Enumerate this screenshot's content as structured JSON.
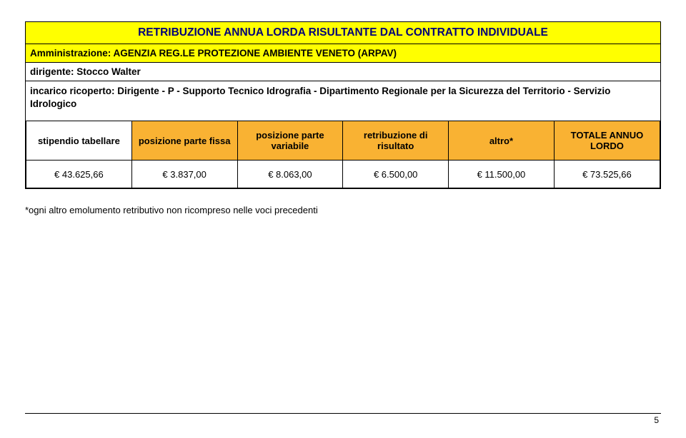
{
  "colors": {
    "yellow": "#ffff00",
    "orange": "#f9b233",
    "white": "#ffffff",
    "text": "#000000",
    "title_text": "#00007a"
  },
  "title": "RETRIBUZIONE ANNUA LORDA RISULTANTE DAL CONTRATTO INDIVIDUALE",
  "administration": "Amministrazione: AGENZIA REG.LE PROTEZIONE AMBIENTE VENETO (ARPAV)",
  "dirigente": "dirigente: Stocco Walter",
  "incarico": "incarico ricoperto: Dirigente - P - Supporto Tecnico Idrografia - Dipartimento Regionale per la Sicurezza del Territorio - Servizio Idrologico",
  "headers": {
    "c0": "stipendio tabellare",
    "c1": "posizione parte fissa",
    "c2": "posizione parte variabile",
    "c3": "retribuzione di risultato",
    "c4": "altro*",
    "c5": "TOTALE ANNUO LORDO"
  },
  "row": {
    "c0": "€ 43.625,66",
    "c1": "€ 3.837,00",
    "c2": "€ 8.063,00",
    "c3": "€ 6.500,00",
    "c4": "€ 11.500,00",
    "c5": "€ 73.525,66"
  },
  "footnote": "*ogni altro emolumento retributivo non ricompreso nelle voci precedenti",
  "page_number": "5",
  "col_widths": [
    "16.66%",
    "16.66%",
    "16.66%",
    "16.66%",
    "16.66%",
    "16.7%"
  ],
  "header_bg": [
    "#ffffff",
    "#f9b233",
    "#f9b233",
    "#f9b233",
    "#f9b233",
    "#f9b233"
  ]
}
